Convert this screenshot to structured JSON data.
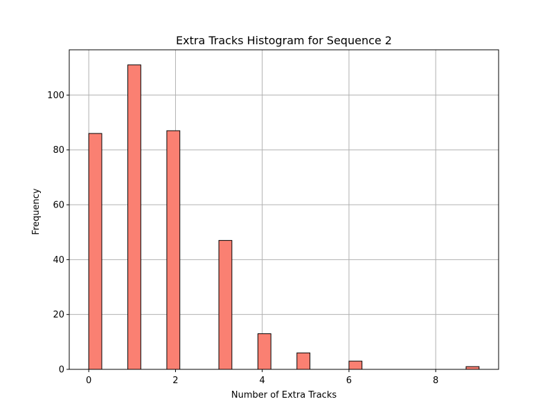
{
  "chart_data": {
    "type": "bar",
    "title": "Extra Tracks Histogram for Sequence 2",
    "xlabel": "Number of Extra Tracks",
    "ylabel": "Frequency",
    "xlim": [
      -0.45,
      9.45
    ],
    "ylim": [
      0,
      116.5
    ],
    "xticks": [
      0,
      2,
      4,
      6,
      8
    ],
    "yticks": [
      0,
      20,
      40,
      60,
      80,
      100
    ],
    "grid": true,
    "bin_width": 0.3,
    "bars": [
      {
        "x_start": 0.0,
        "value": 86
      },
      {
        "x_start": 0.9,
        "value": 111
      },
      {
        "x_start": 1.8,
        "value": 87
      },
      {
        "x_start": 3.0,
        "value": 47
      },
      {
        "x_start": 3.9,
        "value": 13
      },
      {
        "x_start": 4.8,
        "value": 6
      },
      {
        "x_start": 6.0,
        "value": 3
      },
      {
        "x_start": 8.7,
        "value": 1
      }
    ],
    "colors": {
      "bar_fill": "#fa8072",
      "bar_edge": "#000000",
      "grid": "#b0b0b0",
      "axis": "#000000"
    }
  }
}
